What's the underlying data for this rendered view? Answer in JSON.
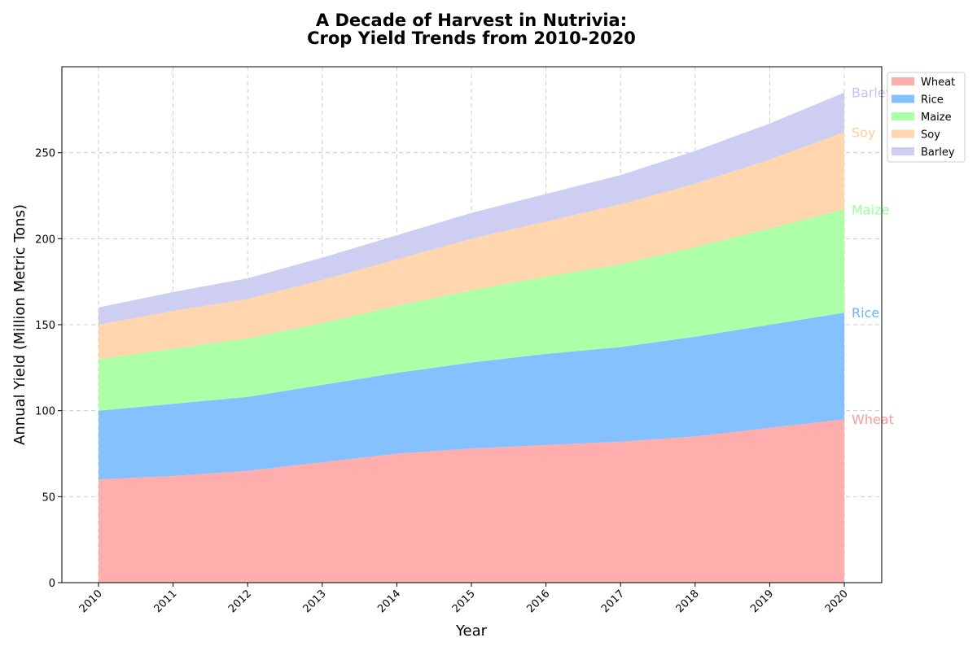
{
  "chart_data": {
    "type": "area",
    "stacked": true,
    "title_line1": "A Decade of Harvest in Nutrivia:",
    "title_line2": "Crop Yield Trends from 2010-2020",
    "xlabel": "Year",
    "ylabel": "Annual Yield (Million Metric Tons)",
    "x": [
      "2010",
      "2011",
      "2012",
      "2013",
      "2014",
      "2015",
      "2016",
      "2017",
      "2018",
      "2019",
      "2020"
    ],
    "ylim": [
      0,
      300
    ],
    "yticks": [
      "0",
      "50",
      "100",
      "150",
      "200",
      "250"
    ],
    "grid": true,
    "legend_position": "top-right, outside plot",
    "series": [
      {
        "name": "Wheat",
        "color": "#ffadad",
        "label_color": "#ff9999",
        "values": [
          60,
          62,
          65,
          70,
          75,
          78,
          80,
          82,
          85,
          90,
          95
        ]
      },
      {
        "name": "Rice",
        "color": "#85c1ff",
        "label_color": "#66b3ff",
        "values": [
          40,
          42,
          43,
          45,
          47,
          50,
          53,
          55,
          58,
          60,
          62
        ]
      },
      {
        "name": "Maize",
        "color": "#adffa8",
        "label_color": "#99ff99",
        "values": [
          30,
          32,
          34,
          36,
          39,
          42,
          45,
          48,
          52,
          56,
          60
        ]
      },
      {
        "name": "Soy",
        "color": "#ffd6ad",
        "label_color": "#ffcc99",
        "values": [
          20,
          22,
          23,
          25,
          27,
          30,
          32,
          35,
          37,
          40,
          45
        ]
      },
      {
        "name": "Barley",
        "color": "#cecef2",
        "label_color": "#c2c2f0",
        "values": [
          10,
          11,
          12,
          13,
          14,
          15,
          16,
          17,
          19,
          21,
          23
        ]
      }
    ]
  }
}
